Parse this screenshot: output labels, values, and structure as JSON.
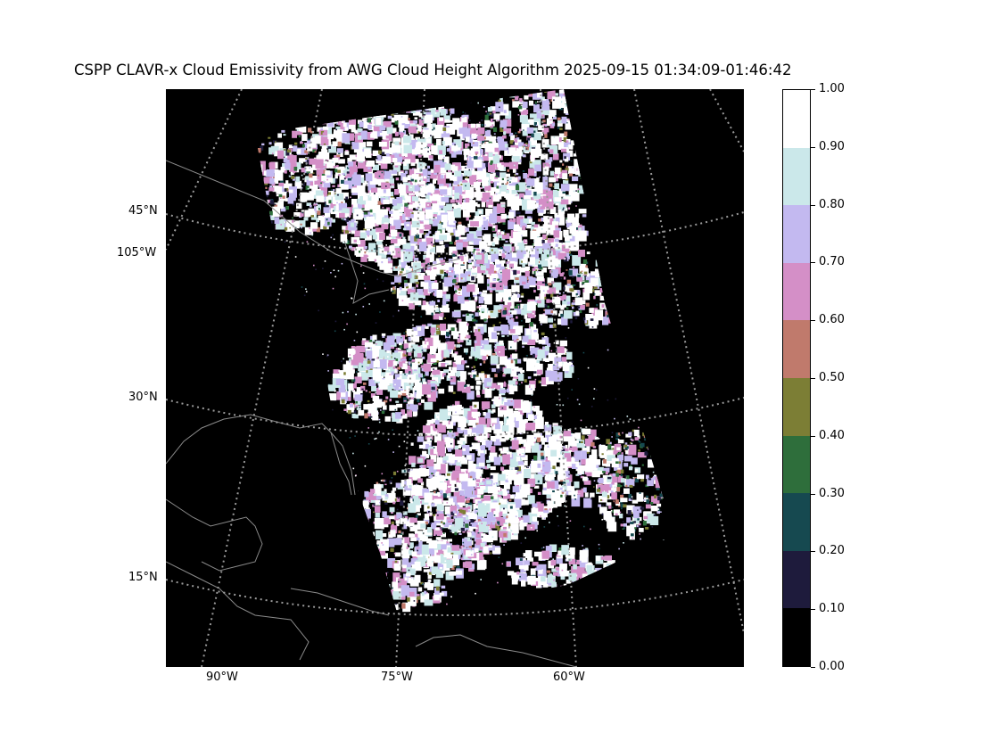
{
  "title": "CSPP CLAVR-x Cloud Emissivity from AWG Cloud Height Algorithm 2025-09-15 01:34:09-01:46:42",
  "map": {
    "lat_labels": [
      "45°N",
      "30°N",
      "15°N"
    ],
    "lon_labels_left": [
      "105°W"
    ],
    "lon_labels_bottom": [
      "90°W",
      "75°W",
      "60°W"
    ],
    "background_color": "#000000",
    "gridline_color": "#9a9a9a",
    "coastline_color": "#8a8a8a"
  },
  "colorbar": {
    "tick_labels": [
      "1.00",
      "0.90",
      "0.80",
      "0.70",
      "0.60",
      "0.50",
      "0.40",
      "0.30",
      "0.20",
      "0.10",
      "0.00"
    ],
    "bins": [
      {
        "range": "0.90-1.00",
        "color": "#ffffff"
      },
      {
        "range": "0.80-0.90",
        "color": "#cbe8ea"
      },
      {
        "range": "0.70-0.80",
        "color": "#c3b9f0"
      },
      {
        "range": "0.60-0.70",
        "color": "#d48fc7"
      },
      {
        "range": "0.50-0.60",
        "color": "#c07a6c"
      },
      {
        "range": "0.40-0.50",
        "color": "#7c7e35"
      },
      {
        "range": "0.30-0.40",
        "color": "#2e6e3b"
      },
      {
        "range": "0.20-0.30",
        "color": "#164950"
      },
      {
        "range": "0.10-0.20",
        "color": "#1e1b3c"
      },
      {
        "range": "0.00-0.10",
        "color": "#000000"
      }
    ]
  }
}
